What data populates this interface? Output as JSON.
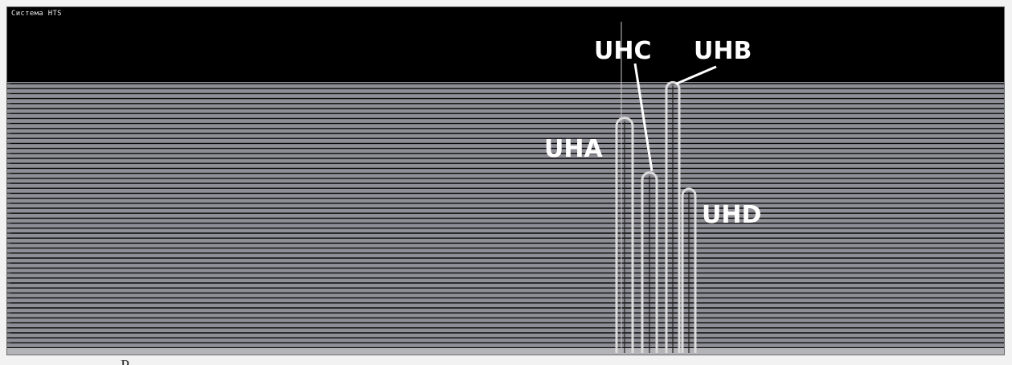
{
  "window": {
    "title": "Система HTS"
  },
  "peaks": [
    {
      "label": "UHA",
      "level": 0.86
    },
    {
      "label": "UHC",
      "level": 0.66
    },
    {
      "label": "UHB",
      "level": 0.99
    },
    {
      "label": "UHD",
      "level": 0.6
    }
  ],
  "colors": {
    "background": "#000000",
    "plot": "#8e8e96",
    "line": "#0a0a0a",
    "peak": "#dcdcdc",
    "label": "#ffffff"
  },
  "caption_fragment": "Р"
}
